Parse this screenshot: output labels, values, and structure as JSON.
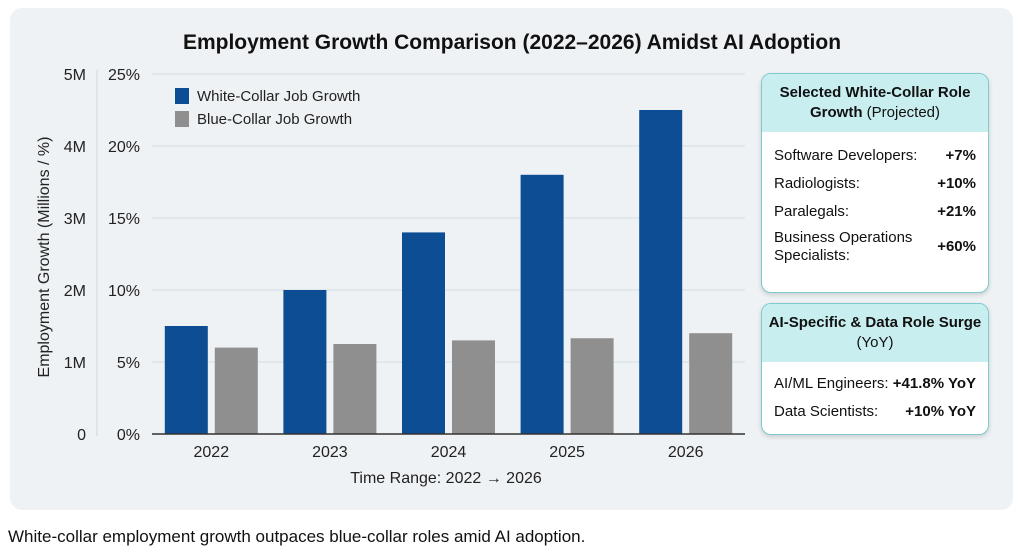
{
  "chart_data": {
    "type": "bar",
    "title": "Employment Growth Comparison (2022–2026) Amidst AI Adoption",
    "xlabel": "Time Range: 2022 → 2026",
    "ylabel": "Employment Growth (Millions / %)",
    "categories": [
      "2022",
      "2023",
      "2024",
      "2025",
      "2026"
    ],
    "ylim": [
      0,
      5
    ],
    "y_ticks_millions": [
      "0",
      "1M",
      "2M",
      "3M",
      "4M",
      "5M"
    ],
    "y_ticks_percent": [
      "0%",
      "5%",
      "10%",
      "15%",
      "20%",
      "25%"
    ],
    "grid": true,
    "legend_position": "top-left",
    "series": [
      {
        "name": "White-Collar Job Growth",
        "color": "#0d4d94",
        "values": [
          1.5,
          2.0,
          2.8,
          3.6,
          4.5
        ]
      },
      {
        "name": "Blue-Collar Job Growth",
        "color": "#8f8f8f",
        "values": [
          1.2,
          1.25,
          1.3,
          1.33,
          1.4
        ]
      }
    ]
  },
  "panels": [
    {
      "title_bold": "Selected White-Collar Role Growth",
      "title_rest": "(Projected)",
      "rows": [
        {
          "label": "Software Developers:",
          "value": "+7%"
        },
        {
          "label": "Radiologists:",
          "value": "+10%"
        },
        {
          "label": "Paralegals:",
          "value": "+21%"
        },
        {
          "label": "Business Operations Specialists:",
          "value": "+60%"
        }
      ]
    },
    {
      "title_bold": "AI-Specific & Data Role Surge",
      "title_rest": "(YoY)",
      "rows": [
        {
          "label": "AI/ML Engineers:",
          "value": "+41.8% YoY"
        },
        {
          "label": "Data Scientists:",
          "value": "+10% YoY"
        }
      ]
    }
  ],
  "caption": "White-collar employment growth outpaces blue-collar roles amid AI adoption."
}
